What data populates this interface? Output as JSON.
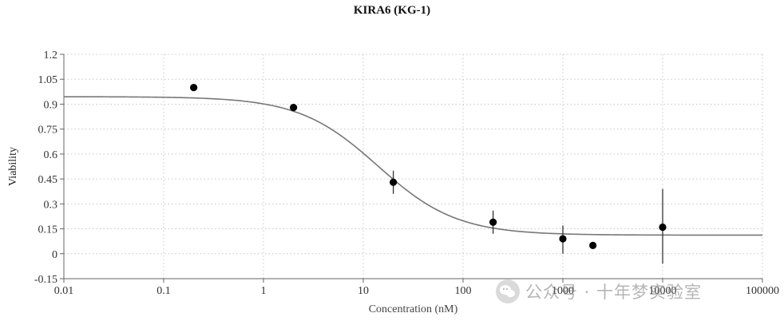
{
  "chart_data": {
    "type": "scatter",
    "title": "KIRA6 (KG-1)",
    "xlabel": "Concentration (nM)",
    "ylabel": "Viability",
    "x_scale": "log",
    "xlim": [
      0.01,
      100000
    ],
    "ylim": [
      -0.15,
      1.2
    ],
    "grid": true,
    "x_ticks": [
      "0.01",
      "0.1",
      "1",
      "10",
      "100",
      "1000",
      "10000",
      "100000"
    ],
    "y_ticks": [
      "-0.15",
      "0",
      "0.15",
      "0.3",
      "0.45",
      "0.6",
      "0.75",
      "0.9",
      "1.05",
      "1.2"
    ],
    "points": [
      {
        "x": 0.2,
        "y": 1.0,
        "err_low": null,
        "err_high": null
      },
      {
        "x": 2,
        "y": 0.88,
        "err_low": 0.86,
        "err_high": 0.89
      },
      {
        "x": 20,
        "y": 0.43,
        "err_low": 0.36,
        "err_high": 0.5
      },
      {
        "x": 200,
        "y": 0.19,
        "err_low": 0.12,
        "err_high": 0.26
      },
      {
        "x": 1000,
        "y": 0.09,
        "err_low": 0.0,
        "err_high": 0.17
      },
      {
        "x": 2000,
        "y": 0.05,
        "err_low": null,
        "err_high": null
      },
      {
        "x": 10000,
        "y": 0.16,
        "err_low": -0.06,
        "err_high": 0.39
      }
    ],
    "fit_curve": {
      "top": 0.945,
      "bottom": 0.112,
      "ic50": 14,
      "hill": 1.1
    },
    "colors": {
      "points": "#000000",
      "curve": "#777777",
      "grid": "#c8c8c8"
    }
  },
  "watermark": {
    "text": "公众号 · 十年梦实验室",
    "icon": "wechat-icon"
  }
}
